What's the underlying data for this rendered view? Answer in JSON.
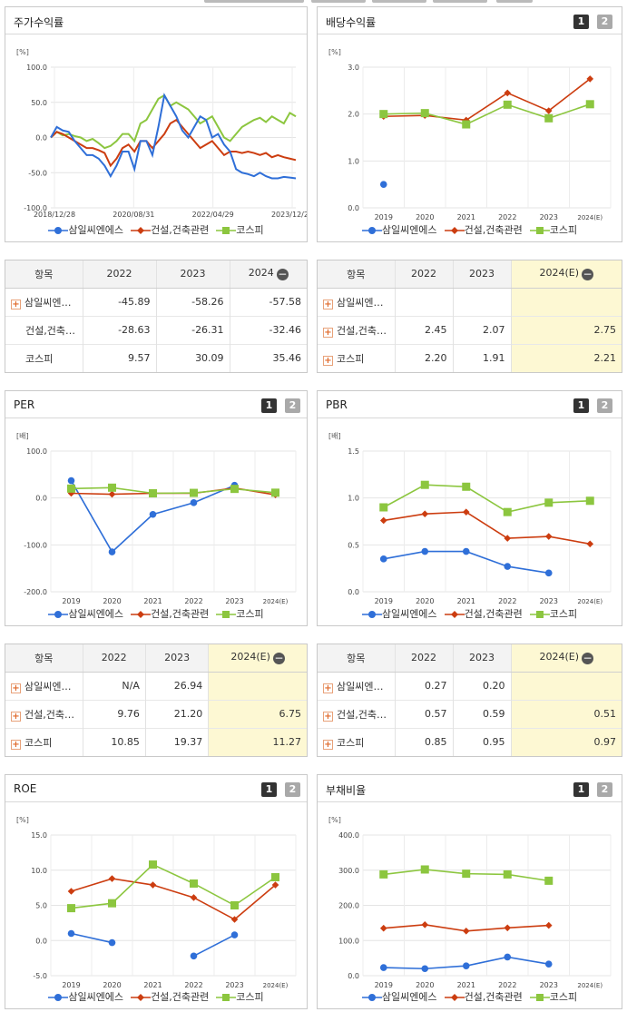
{
  "colors": {
    "samil": "#2f6fd8",
    "constr": "#cc3d10",
    "kospi": "#8cc63f",
    "highlight": "#fdf8d3"
  },
  "legend": [
    "삼일씨엔에스",
    "건설,건축관련",
    "코스피"
  ],
  "panels": {
    "stock": {
      "title": "주가수익률"
    },
    "div": {
      "title": "배당수익률",
      "p1": "1",
      "p2": "2"
    },
    "per": {
      "title": "PER",
      "p1": "1",
      "p2": "2"
    },
    "pbr": {
      "title": "PBR",
      "p1": "1",
      "p2": "2"
    },
    "roe": {
      "title": "ROE",
      "p1": "1",
      "p2": "2"
    },
    "debt": {
      "title": "부채비율",
      "p1": "1",
      "p2": "2"
    }
  },
  "tables": {
    "stock": {
      "head": [
        "항목",
        "2022",
        "2023",
        "2024"
      ],
      "rows": [
        {
          "name": "삼일씨엔…",
          "plus": true,
          "v": [
            "-45.89",
            "-58.26",
            "-57.58"
          ]
        },
        {
          "name": "건설,건축…",
          "plus": false,
          "v": [
            "-28.63",
            "-26.31",
            "-32.46"
          ]
        },
        {
          "name": "코스피",
          "plus": false,
          "v": [
            "9.57",
            "30.09",
            "35.46"
          ]
        }
      ]
    },
    "div": {
      "head": [
        "항목",
        "2022",
        "2023",
        "2024(E)"
      ],
      "rows": [
        {
          "name": "삼일씨엔…",
          "plus": true,
          "v": [
            "",
            "",
            ""
          ]
        },
        {
          "name": "건설,건축…",
          "plus": true,
          "v": [
            "2.45",
            "2.07",
            "2.75"
          ]
        },
        {
          "name": "코스피",
          "plus": true,
          "v": [
            "2.20",
            "1.91",
            "2.21"
          ]
        }
      ]
    },
    "per": {
      "head": [
        "항목",
        "2022",
        "2023",
        "2024(E)"
      ],
      "rows": [
        {
          "name": "삼일씨엔…",
          "plus": true,
          "v": [
            "N/A",
            "26.94",
            ""
          ]
        },
        {
          "name": "건설,건축…",
          "plus": true,
          "v": [
            "9.76",
            "21.20",
            "6.75"
          ]
        },
        {
          "name": "코스피",
          "plus": true,
          "v": [
            "10.85",
            "19.37",
            "11.27"
          ]
        }
      ]
    },
    "pbr": {
      "head": [
        "항목",
        "2022",
        "2023",
        "2024(E)"
      ],
      "rows": [
        {
          "name": "삼일씨엔…",
          "plus": true,
          "v": [
            "0.27",
            "0.20",
            ""
          ]
        },
        {
          "name": "건설,건축…",
          "plus": true,
          "v": [
            "0.57",
            "0.59",
            "0.51"
          ]
        },
        {
          "name": "코스피",
          "plus": true,
          "v": [
            "0.85",
            "0.95",
            "0.97"
          ]
        }
      ]
    }
  },
  "chart_data": [
    {
      "id": "stock",
      "type": "line",
      "title": "주가수익률",
      "unit": "[%]",
      "ylim": [
        -100,
        100
      ],
      "yticks": [
        "100.0",
        "50.0",
        "0.0",
        "-50.0",
        "-100.0"
      ],
      "xlabels": [
        "2018/12/28",
        "2020/08/31",
        "2022/04/29",
        "2023/12/28"
      ],
      "series": [
        {
          "name": "삼일씨엔에스",
          "values": [
            0,
            15,
            10,
            8,
            -5,
            -15,
            -25,
            -25,
            -30,
            -40,
            -55,
            -40,
            -20,
            -20,
            -45,
            -5,
            -5,
            -25,
            15,
            60,
            45,
            30,
            10,
            0,
            15,
            30,
            25,
            0,
            5,
            -10,
            -20,
            -45,
            -50,
            -52,
            -55,
            -50,
            -55,
            -58,
            -58,
            -56,
            -57,
            -58
          ]
        },
        {
          "name": "건설,건축관련",
          "values": [
            0,
            8,
            5,
            0,
            -5,
            -10,
            -15,
            -15,
            -18,
            -22,
            -40,
            -30,
            -15,
            -10,
            -20,
            -5,
            -5,
            -15,
            -5,
            5,
            20,
            25,
            15,
            5,
            -5,
            -15,
            -10,
            -5,
            -15,
            -25,
            -20,
            -20,
            -22,
            -20,
            -22,
            -25,
            -22,
            -28,
            -25,
            -28,
            -30,
            -32
          ]
        },
        {
          "name": "코스피",
          "values": [
            0,
            8,
            3,
            5,
            2,
            0,
            -5,
            -2,
            -8,
            -15,
            -12,
            -5,
            5,
            5,
            -5,
            20,
            25,
            40,
            55,
            60,
            45,
            50,
            45,
            40,
            30,
            20,
            25,
            30,
            15,
            0,
            -5,
            5,
            15,
            20,
            25,
            28,
            22,
            30,
            25,
            20,
            35,
            30
          ]
        }
      ]
    },
    {
      "id": "div",
      "type": "line",
      "title": "배당수익률",
      "unit": "[%]",
      "ylim": [
        0,
        3
      ],
      "yticks": [
        "3.0",
        "2.0",
        "1.0",
        "0.0"
      ],
      "categories": [
        "2019",
        "2020",
        "2021",
        "2022",
        "2023",
        "2024(E)"
      ],
      "series": [
        {
          "name": "삼일씨엔에스",
          "values": [
            0.5,
            null,
            null,
            null,
            null,
            null
          ]
        },
        {
          "name": "건설,건축관련",
          "values": [
            1.95,
            1.97,
            1.87,
            2.45,
            2.07,
            2.75
          ]
        },
        {
          "name": "코스피",
          "values": [
            2.0,
            2.02,
            1.78,
            2.2,
            1.91,
            2.21
          ]
        }
      ]
    },
    {
      "id": "per",
      "type": "line",
      "title": "PER",
      "unit": "[배]",
      "ylim": [
        -200,
        100
      ],
      "yticks": [
        "100.0",
        "0.0",
        "-100.0",
        "-200.0"
      ],
      "categories": [
        "2019",
        "2020",
        "2021",
        "2022",
        "2023",
        "2024(E)"
      ],
      "series": [
        {
          "name": "삼일씨엔에스",
          "values": [
            37,
            -115,
            -35,
            -10,
            27,
            null
          ]
        },
        {
          "name": "건설,건축관련",
          "values": [
            10,
            8,
            10,
            10,
            21.2,
            6.75
          ]
        },
        {
          "name": "코스피",
          "values": [
            20,
            22,
            10,
            10.85,
            19.37,
            11.27
          ]
        }
      ]
    },
    {
      "id": "pbr",
      "type": "line",
      "title": "PBR",
      "unit": "[배]",
      "ylim": [
        0,
        1.5
      ],
      "yticks": [
        "1.5",
        "1.0",
        "0.5",
        "0.0"
      ],
      "categories": [
        "2019",
        "2020",
        "2021",
        "2022",
        "2023",
        "2024(E)"
      ],
      "series": [
        {
          "name": "삼일씨엔에스",
          "values": [
            0.35,
            0.43,
            0.43,
            0.27,
            0.2,
            null
          ]
        },
        {
          "name": "건설,건축관련",
          "values": [
            0.76,
            0.83,
            0.85,
            0.57,
            0.59,
            0.51
          ]
        },
        {
          "name": "코스피",
          "values": [
            0.9,
            1.14,
            1.12,
            0.85,
            0.95,
            0.97
          ]
        }
      ]
    },
    {
      "id": "roe",
      "type": "line",
      "title": "ROE",
      "unit": "[%]",
      "ylim": [
        -5,
        15
      ],
      "yticks": [
        "15.0",
        "10.0",
        "5.0",
        "0.0",
        "-5.0"
      ],
      "categories": [
        "2019",
        "2020",
        "2021",
        "2022",
        "2023",
        "2024(E)"
      ],
      "series": [
        {
          "name": "삼일씨엔에스",
          "values": [
            1.0,
            -0.3,
            null,
            -2.2,
            0.8,
            null
          ]
        },
        {
          "name": "건설,건축관련",
          "values": [
            7.0,
            8.8,
            7.9,
            6.1,
            3.0,
            7.9
          ]
        },
        {
          "name": "코스피",
          "values": [
            4.6,
            5.3,
            10.8,
            8.1,
            5.0,
            9.0
          ]
        }
      ]
    },
    {
      "id": "debt",
      "type": "line",
      "title": "부채비율",
      "unit": "[%]",
      "ylim": [
        0,
        400
      ],
      "yticks": [
        "400.0",
        "300.0",
        "200.0",
        "100.0",
        "0.0"
      ],
      "categories": [
        "2019",
        "2020",
        "2021",
        "2022",
        "2023",
        "2024(E)"
      ],
      "series": [
        {
          "name": "삼일씨엔에스",
          "values": [
            23,
            20,
            28,
            53,
            33,
            null
          ]
        },
        {
          "name": "건설,건축관련",
          "values": [
            135,
            145,
            127,
            136,
            143,
            null
          ]
        },
        {
          "name": "코스피",
          "values": [
            288,
            302,
            290,
            288,
            270,
            null
          ]
        }
      ]
    }
  ]
}
